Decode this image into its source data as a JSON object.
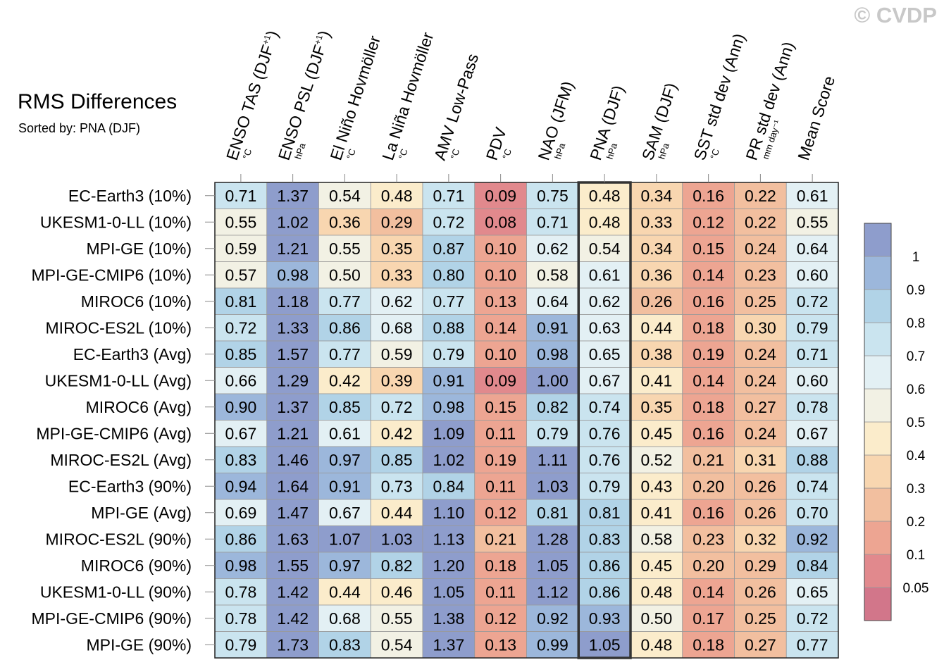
{
  "title": "RMS Differences",
  "subtitle": "Sorted by: PNA (DJF)",
  "watermark": "© CVDP",
  "chart_data": {
    "type": "heatmap",
    "columns": [
      {
        "label": "ENSO TAS (DJF",
        "sup": "+1",
        "close": ")",
        "unit": "°C"
      },
      {
        "label": "ENSO PSL (DJF",
        "sup": "+1",
        "close": ")",
        "unit": "hPa"
      },
      {
        "label": "El Niño Hovmöller",
        "sup": "",
        "close": "",
        "unit": "°C"
      },
      {
        "label": "La Niña Hovmöller",
        "sup": "",
        "close": "",
        "unit": "°C"
      },
      {
        "label": "AMV Low-Pass",
        "sup": "",
        "close": "",
        "unit": "°C"
      },
      {
        "label": "PDV",
        "sup": "",
        "close": "",
        "unit": "°C"
      },
      {
        "label": "NAO (JFM)",
        "sup": "",
        "close": "",
        "unit": "hPa"
      },
      {
        "label": "PNA (DJF)",
        "sup": "",
        "close": "",
        "unit": "hPa"
      },
      {
        "label": "SAM (DJF)",
        "sup": "",
        "close": "",
        "unit": "hPa"
      },
      {
        "label": "SST std dev (Ann)",
        "sup": "",
        "close": "",
        "unit": "°C"
      },
      {
        "label": "PR std dev (Ann)",
        "sup": "",
        "close": "",
        "unit": "mm day⁻¹"
      },
      {
        "label": "Mean Score",
        "sup": "",
        "close": "",
        "unit": ""
      }
    ],
    "rows": [
      "EC-Earth3 (10%)",
      "UKESM1-0-LL (10%)",
      "MPI-GE (10%)",
      "MPI-GE-CMIP6 (10%)",
      "MIROC6 (10%)",
      "MIROC-ES2L (10%)",
      "EC-Earth3 (Avg)",
      "UKESM1-0-LL (Avg)",
      "MIROC6 (Avg)",
      "MPI-GE-CMIP6 (Avg)",
      "MIROC-ES2L (Avg)",
      "EC-Earth3 (90%)",
      "MPI-GE (Avg)",
      "MIROC-ES2L (90%)",
      "MIROC6 (90%)",
      "UKESM1-0-LL (90%)",
      "MPI-GE-CMIP6 (90%)",
      "MPI-GE (90%)"
    ],
    "values": [
      [
        "0.71",
        "1.37",
        "0.54",
        "0.48",
        "0.71",
        "0.09",
        "0.75",
        "0.48",
        "0.34",
        "0.16",
        "0.22",
        "0.61"
      ],
      [
        "0.55",
        "1.02",
        "0.36",
        "0.29",
        "0.72",
        "0.08",
        "0.71",
        "0.48",
        "0.33",
        "0.12",
        "0.22",
        "0.55"
      ],
      [
        "0.59",
        "1.21",
        "0.55",
        "0.35",
        "0.87",
        "0.10",
        "0.62",
        "0.54",
        "0.34",
        "0.15",
        "0.24",
        "0.64"
      ],
      [
        "0.57",
        "0.98",
        "0.50",
        "0.33",
        "0.80",
        "0.10",
        "0.58",
        "0.61",
        "0.36",
        "0.14",
        "0.23",
        "0.60"
      ],
      [
        "0.81",
        "1.18",
        "0.77",
        "0.62",
        "0.77",
        "0.13",
        "0.64",
        "0.62",
        "0.26",
        "0.16",
        "0.25",
        "0.72"
      ],
      [
        "0.72",
        "1.33",
        "0.86",
        "0.68",
        "0.88",
        "0.14",
        "0.91",
        "0.63",
        "0.44",
        "0.18",
        "0.30",
        "0.79"
      ],
      [
        "0.85",
        "1.57",
        "0.77",
        "0.59",
        "0.79",
        "0.10",
        "0.98",
        "0.65",
        "0.38",
        "0.19",
        "0.24",
        "0.71"
      ],
      [
        "0.66",
        "1.29",
        "0.42",
        "0.39",
        "0.91",
        "0.09",
        "1.00",
        "0.67",
        "0.41",
        "0.14",
        "0.24",
        "0.60"
      ],
      [
        "0.90",
        "1.37",
        "0.85",
        "0.72",
        "0.98",
        "0.15",
        "0.82",
        "0.74",
        "0.35",
        "0.18",
        "0.27",
        "0.78"
      ],
      [
        "0.67",
        "1.21",
        "0.61",
        "0.42",
        "1.09",
        "0.11",
        "0.79",
        "0.76",
        "0.45",
        "0.16",
        "0.24",
        "0.67"
      ],
      [
        "0.83",
        "1.46",
        "0.97",
        "0.85",
        "1.02",
        "0.19",
        "1.11",
        "0.76",
        "0.52",
        "0.21",
        "0.31",
        "0.88"
      ],
      [
        "0.94",
        "1.64",
        "0.91",
        "0.73",
        "0.84",
        "0.11",
        "1.03",
        "0.79",
        "0.43",
        "0.20",
        "0.26",
        "0.74"
      ],
      [
        "0.69",
        "1.47",
        "0.67",
        "0.44",
        "1.10",
        "0.12",
        "0.81",
        "0.81",
        "0.41",
        "0.16",
        "0.26",
        "0.70"
      ],
      [
        "0.86",
        "1.63",
        "1.07",
        "1.03",
        "1.13",
        "0.21",
        "1.28",
        "0.83",
        "0.58",
        "0.23",
        "0.32",
        "0.92"
      ],
      [
        "0.98",
        "1.55",
        "0.97",
        "0.82",
        "1.20",
        "0.18",
        "1.05",
        "0.86",
        "0.45",
        "0.20",
        "0.29",
        "0.84"
      ],
      [
        "0.78",
        "1.42",
        "0.44",
        "0.46",
        "1.05",
        "0.11",
        "1.12",
        "0.86",
        "0.48",
        "0.14",
        "0.26",
        "0.65"
      ],
      [
        "0.78",
        "1.42",
        "0.68",
        "0.55",
        "1.38",
        "0.12",
        "0.92",
        "0.93",
        "0.50",
        "0.17",
        "0.25",
        "0.72"
      ],
      [
        "0.79",
        "1.73",
        "0.83",
        "0.54",
        "1.37",
        "0.13",
        "0.99",
        "1.05",
        "0.48",
        "0.18",
        "0.27",
        "0.77"
      ]
    ],
    "highlighted_column": "PNA (DJF)",
    "colorbar": {
      "levels": [
        "0.05",
        "0.1",
        "0.2",
        "0.3",
        "0.4",
        "0.5",
        "0.6",
        "0.7",
        "0.8",
        "0.9",
        "1"
      ],
      "colors": [
        "#d2768a",
        "#e1898d",
        "#eda592",
        "#f2bf9f",
        "#f8d6b0",
        "#fbeccb",
        "#f2f1e4",
        "#e3f0f4",
        "#cae4ef",
        "#b1d3e7",
        "#9cb7db",
        "#8e9dcc"
      ]
    }
  }
}
